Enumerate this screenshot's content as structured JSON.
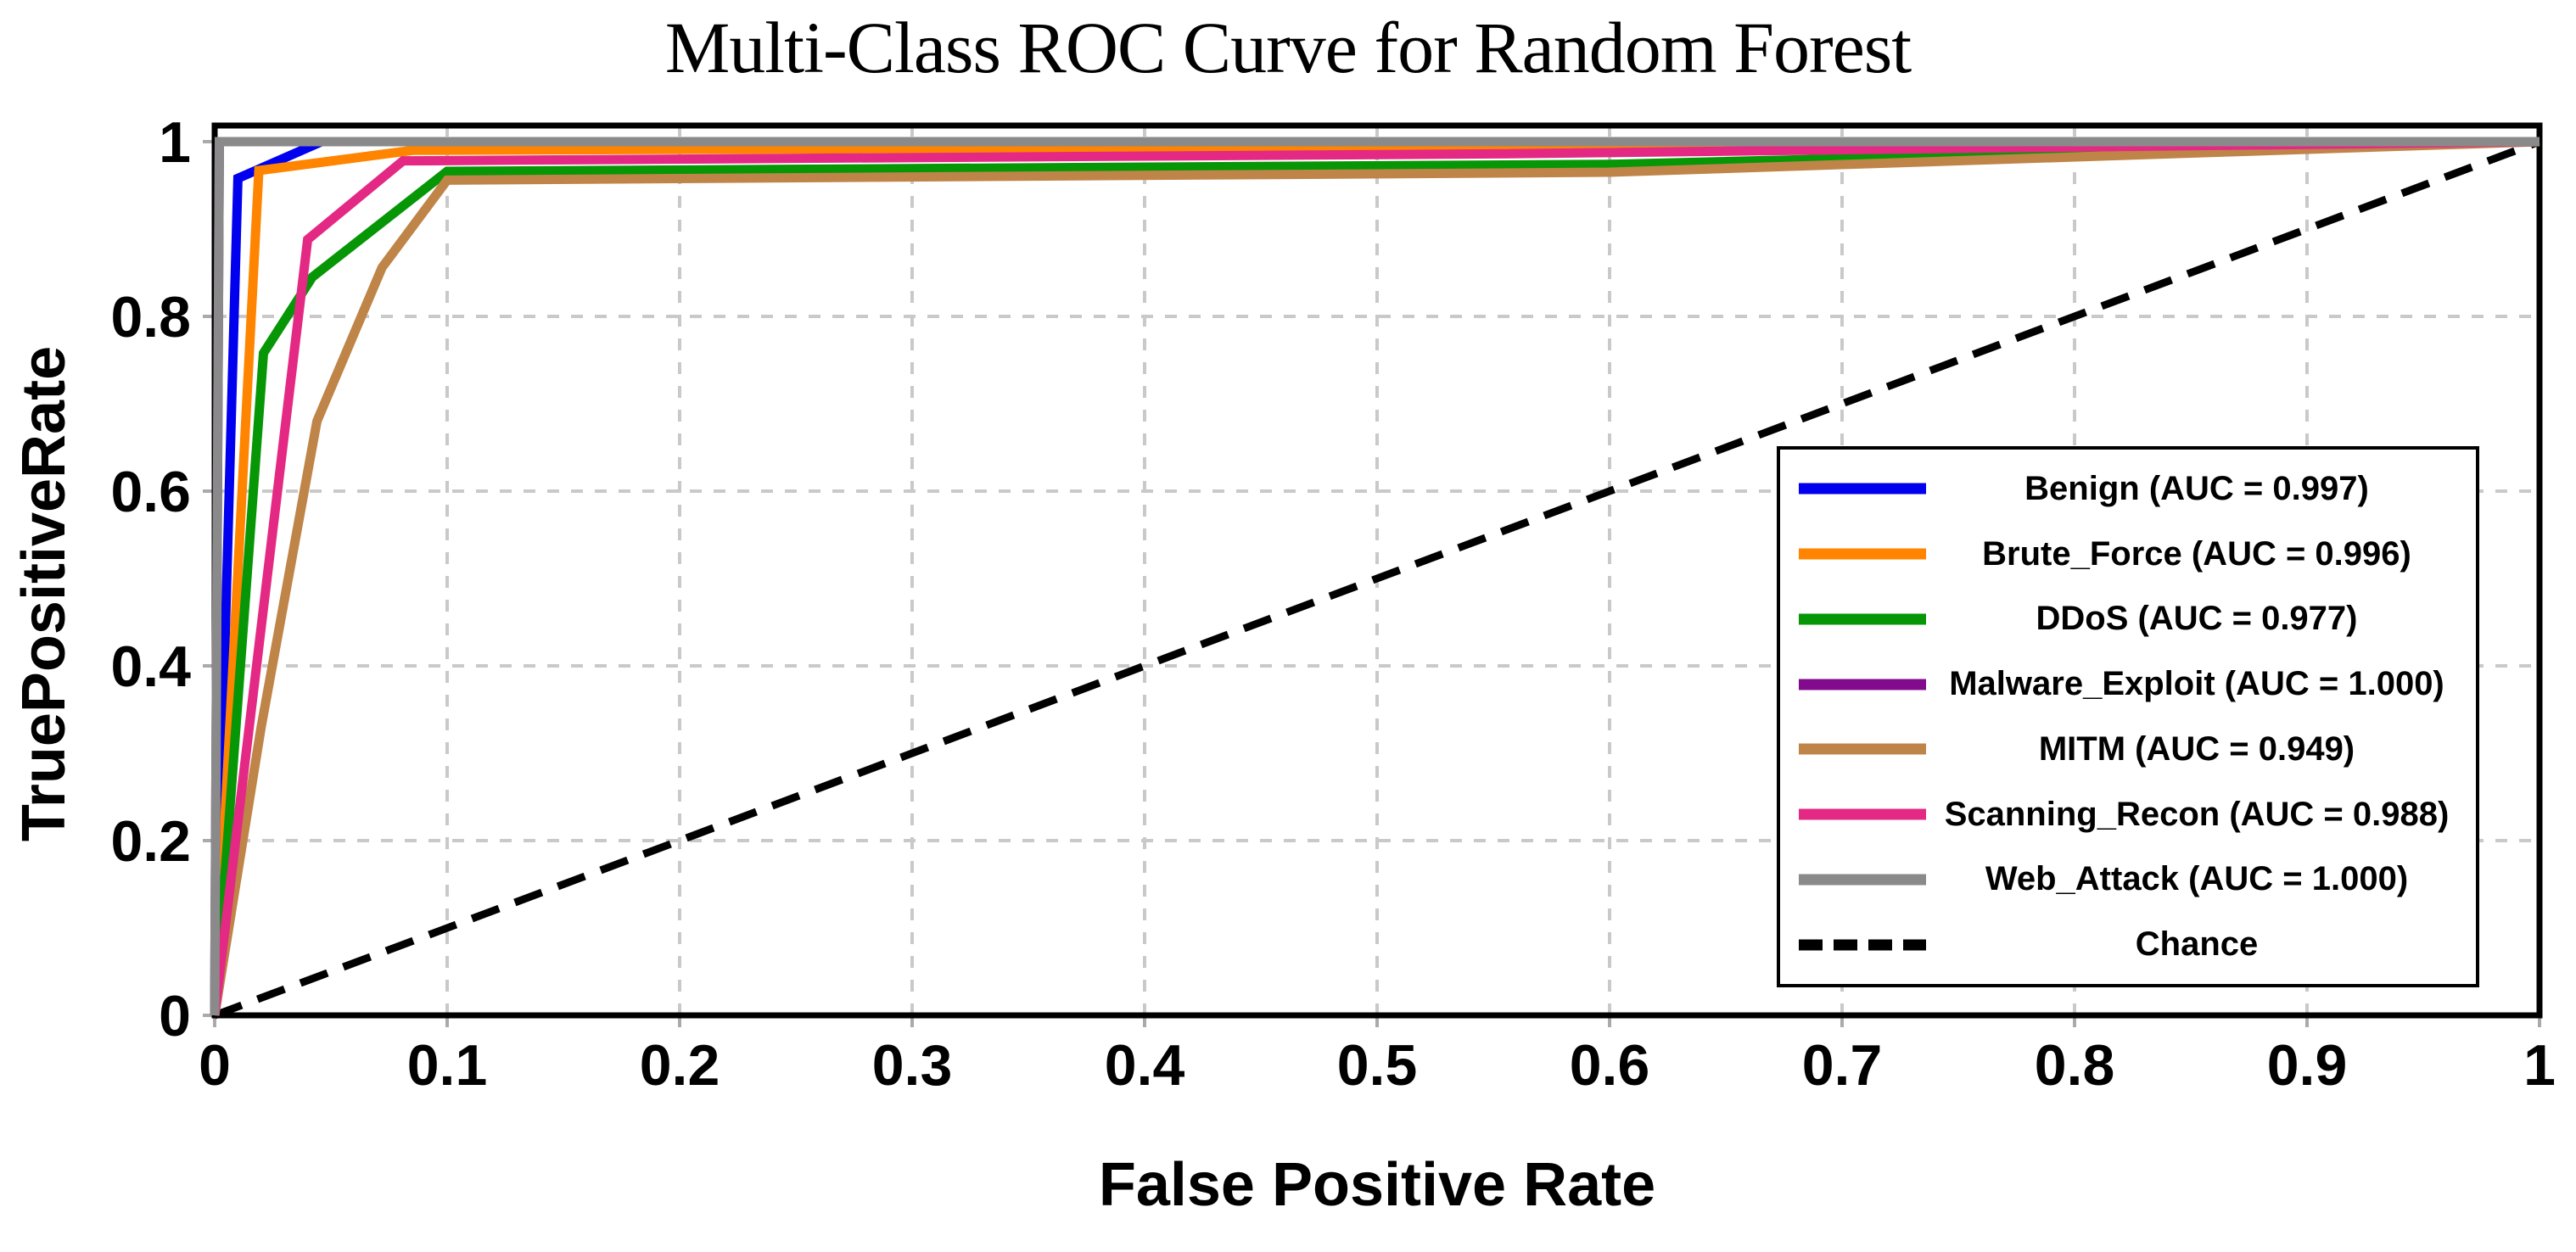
{
  "chart_data": {
    "type": "line",
    "title": "Multi-Class ROC Curve for Random Forest",
    "xlabel": "False Positive Rate",
    "ylabel": "TruePositiveRate",
    "xlim": [
      0,
      1
    ],
    "ylim": [
      0,
      1.02
    ],
    "x_ticks": [
      0,
      0.1,
      0.2,
      0.3,
      0.4,
      0.5,
      0.6,
      0.7,
      0.8,
      0.9,
      1
    ],
    "x_tick_labels": [
      "0",
      "0.1",
      "0.2",
      "0.3",
      "0.4",
      "0.5",
      "0.6",
      "0.7",
      "0.8",
      "0.9",
      "1"
    ],
    "y_ticks": [
      0,
      0.2,
      0.4,
      0.6,
      0.8,
      1
    ],
    "y_tick_labels": [
      "0",
      "0.2",
      "0.4",
      "0.6",
      "0.8",
      "1"
    ],
    "grid": "dashed",
    "grid_color": "#c9c9c9",
    "legend_position": "center-right",
    "series": [
      {
        "name": "Benign",
        "auc": "0.997",
        "legend_label": "Benign (AUC = 0.997)",
        "color": "#0000ee",
        "style": "solid",
        "points": [
          [
            0,
            0
          ],
          [
            0.01,
            0.958
          ],
          [
            0.046,
            1.0
          ],
          [
            1,
            1
          ]
        ]
      },
      {
        "name": "Brute_Force",
        "auc": "0.996",
        "legend_label": "Brute_Force (AUC = 0.996)",
        "color": "#ff8400",
        "style": "solid",
        "points": [
          [
            0,
            0
          ],
          [
            0.019,
            0.967
          ],
          [
            0.085,
            0.99
          ],
          [
            0.6,
            0.995
          ],
          [
            1,
            1
          ]
        ]
      },
      {
        "name": "DDoS",
        "auc": "0.977",
        "legend_label": "DDoS (AUC = 0.977)",
        "color": "#069606",
        "style": "solid",
        "points": [
          [
            0,
            0
          ],
          [
            0.021,
            0.758
          ],
          [
            0.042,
            0.845
          ],
          [
            0.1,
            0.966
          ],
          [
            0.6,
            0.974
          ],
          [
            1,
            1
          ]
        ]
      },
      {
        "name": "Malware_Exploit",
        "auc": "1.000",
        "legend_label": "Malware_Exploit (AUC = 1.000)",
        "color": "#820a8c",
        "style": "solid",
        "points": [
          [
            0,
            0
          ],
          [
            0.002,
            1.0
          ],
          [
            1,
            1
          ]
        ]
      },
      {
        "name": "MITM",
        "auc": "0.949",
        "legend_label": "MITM (AUC = 0.949)",
        "color": "#bf8448",
        "style": "solid",
        "points": [
          [
            0,
            0
          ],
          [
            0.02,
            0.33
          ],
          [
            0.044,
            0.68
          ],
          [
            0.072,
            0.856
          ],
          [
            0.1,
            0.956
          ],
          [
            0.6,
            0.965
          ],
          [
            1,
            1
          ]
        ]
      },
      {
        "name": "Scanning_Recon",
        "auc": "0.988",
        "legend_label": "Scanning_Recon (AUC = 0.988)",
        "color": "#e32984",
        "style": "solid",
        "points": [
          [
            0,
            0
          ],
          [
            0.04,
            0.888
          ],
          [
            0.081,
            0.978
          ],
          [
            0.55,
            0.986
          ],
          [
            1,
            1
          ]
        ]
      },
      {
        "name": "Web_Attack",
        "auc": "1.000",
        "legend_label": "Web_Attack (AUC = 1.000)",
        "color": "#8a8a8a",
        "style": "solid",
        "points": [
          [
            0,
            0
          ],
          [
            0.002,
            1.0
          ],
          [
            1,
            1
          ]
        ]
      },
      {
        "name": "Chance",
        "legend_label": "Chance",
        "color": "#000000",
        "style": "dashed",
        "points": [
          [
            0,
            0
          ],
          [
            1,
            1
          ]
        ]
      }
    ]
  }
}
